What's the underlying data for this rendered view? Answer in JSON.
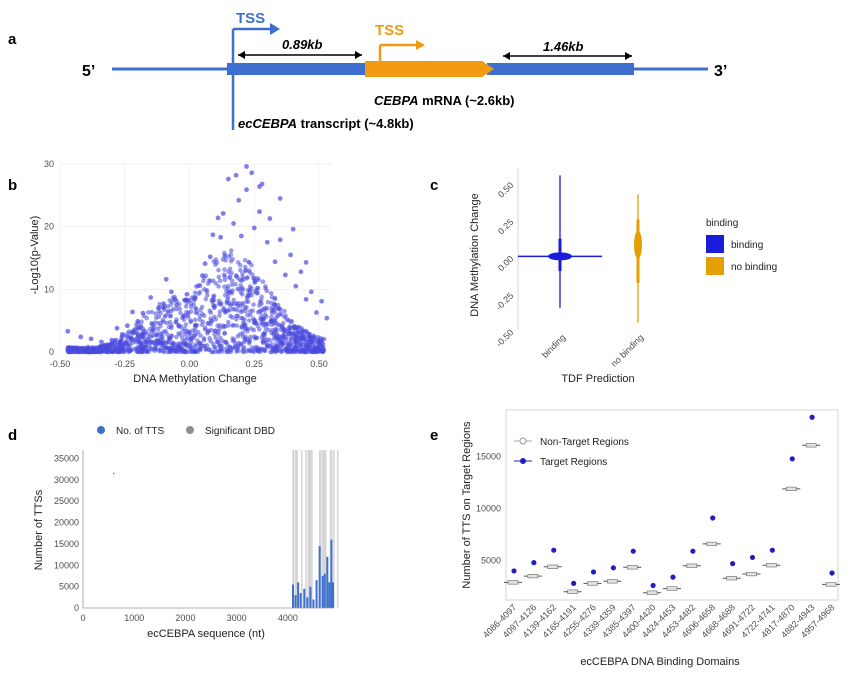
{
  "panel_labels": {
    "a": "a",
    "b": "b",
    "c": "c",
    "d": "d",
    "e": "e"
  },
  "colors": {
    "blue": "#3d6fce",
    "orange": "#f29a12",
    "dot_blue": "#4a4adf",
    "binding": "#1b1bdb",
    "no_binding": "#e69f00",
    "grey": "#8f8f8f"
  },
  "gene_diagram": {
    "five_prime": "5’",
    "three_prime": "3’",
    "tss_blue": "TSS",
    "tss_orange": "TSS",
    "dist_left": "0.89kb",
    "dist_right": "1.46kb",
    "mrna_gene": "CEBPA",
    "mrna_rest": " mRNA (~2.6kb)",
    "transcript_gene": "ecCEBPA",
    "transcript_rest": " transcript (~4.8kb)"
  },
  "chart_data": [
    {
      "panel": "b",
      "type": "scatter",
      "title": "",
      "xlabel": "DNA Methylation Change",
      "ylabel": "-Log10(p-Value)",
      "xlim": [
        -0.5,
        0.55
      ],
      "ylim": [
        0,
        30
      ],
      "xticks": [
        "-0.50",
        "-0.25",
        "0.00",
        "0.25",
        "0.50"
      ],
      "xtick_values": [
        -0.5,
        -0.25,
        0,
        0.25,
        0.5
      ],
      "yticks": [
        "0",
        "10",
        "20",
        "30"
      ],
      "ytick_values": [
        0,
        10,
        20,
        30
      ],
      "grid": true,
      "points": [
        [
          -0.47,
          3.3
        ],
        [
          -0.42,
          2.4
        ],
        [
          -0.38,
          2.1
        ],
        [
          -0.34,
          1.6
        ],
        [
          -0.3,
          1.9
        ],
        [
          -0.26,
          2.8
        ],
        [
          -0.24,
          4.2
        ],
        [
          -0.2,
          4.9
        ],
        [
          -0.18,
          6.2
        ],
        [
          -0.15,
          8.7
        ],
        [
          -0.12,
          7.0
        ],
        [
          -0.1,
          7.7
        ],
        [
          -0.07,
          9.6
        ],
        [
          -0.05,
          7.5
        ],
        [
          -0.02,
          5.8
        ],
        [
          -0.01,
          9.2
        ],
        [
          0.02,
          8.7
        ],
        [
          0.04,
          10.6
        ],
        [
          0.06,
          14.1
        ],
        [
          0.08,
          15.2
        ],
        [
          0.09,
          18.7
        ],
        [
          0.11,
          21.4
        ],
        [
          0.13,
          22.1
        ],
        [
          0.15,
          27.6
        ],
        [
          0.17,
          20.5
        ],
        [
          0.19,
          24.2
        ],
        [
          0.2,
          18.5
        ],
        [
          0.22,
          25.9
        ],
        [
          0.24,
          28.6
        ],
        [
          0.25,
          19.8
        ],
        [
          0.27,
          22.4
        ],
        [
          0.28,
          26.8
        ],
        [
          0.3,
          17.5
        ],
        [
          0.31,
          21.3
        ],
        [
          0.33,
          14.4
        ],
        [
          0.35,
          17.9
        ],
        [
          0.37,
          12.3
        ],
        [
          0.39,
          15.5
        ],
        [
          0.41,
          10.5
        ],
        [
          0.43,
          12.8
        ],
        [
          0.45,
          8.4
        ],
        [
          0.47,
          9.6
        ],
        [
          0.49,
          6.3
        ],
        [
          0.51,
          8.1
        ],
        [
          0.53,
          5.4
        ],
        [
          0.22,
          29.6
        ],
        [
          0.18,
          28.2
        ],
        [
          0.27,
          26.4
        ],
        [
          0.35,
          24.5
        ],
        [
          0.05,
          12.2
        ],
        [
          -0.09,
          11.6
        ],
        [
          -0.22,
          6.4
        ],
        [
          -0.28,
          3.8
        ],
        [
          0.4,
          19.6
        ],
        [
          0.45,
          14.3
        ],
        [
          0.12,
          18.3
        ]
      ]
    },
    {
      "panel": "c",
      "type": "violin",
      "title": "",
      "xlabel": "TDF Prediction",
      "ylabel": "DNA Methylation Change",
      "ylim": [
        -0.5,
        0.6
      ],
      "yticks": [
        "0.50",
        "0.25",
        "0.00",
        "-0.25",
        "-0.50"
      ],
      "ytick_values": [
        0.5,
        0.25,
        0,
        -0.25,
        -0.5
      ],
      "categories": [
        "binding",
        "no binding"
      ],
      "series": [
        {
          "name": "binding",
          "center": 0.0,
          "min": -0.35,
          "max": 0.55,
          "color": "#1b1bdb"
        },
        {
          "name": "no binding",
          "center": 0.08,
          "min": -0.45,
          "max": 0.42,
          "color": "#e69f00"
        }
      ],
      "legend": {
        "title": "binding",
        "entries": [
          "binding",
          "no binding"
        ],
        "position": "right"
      }
    },
    {
      "panel": "d",
      "type": "bar",
      "title": "",
      "xlabel": "ecCEBPA sequence (nt)",
      "ylabel": "Number of TTSs",
      "xlim": [
        0,
        4900
      ],
      "ylim": [
        0,
        37000
      ],
      "xticks": [
        "0",
        "1000",
        "2000",
        "3000",
        "4000"
      ],
      "xtick_values": [
        0,
        1000,
        2000,
        3000,
        4000
      ],
      "yticks": [
        "0",
        "5000",
        "10000",
        "15000",
        "20000",
        "25000",
        "30000",
        "35000"
      ],
      "ytick_values": [
        0,
        5000,
        10000,
        15000,
        20000,
        25000,
        30000,
        35000
      ],
      "legend": {
        "entries": [
          "No. of TTS",
          "Significant DBD"
        ],
        "position": "top"
      },
      "significant_dbd": [
        [
          4086,
          4097
        ],
        [
          4097,
          4126
        ],
        [
          4139,
          4162
        ],
        [
          4165,
          4191
        ],
        [
          4255,
          4276
        ],
        [
          4339,
          4359
        ],
        [
          4385,
          4397
        ],
        [
          4400,
          4420
        ],
        [
          4424,
          4453
        ],
        [
          4453,
          4482
        ],
        [
          4606,
          4658
        ],
        [
          4668,
          4688
        ],
        [
          4691,
          4722
        ],
        [
          4722,
          4741
        ],
        [
          4817,
          4870
        ],
        [
          4882,
          4943
        ],
        [
          4957,
          4968
        ]
      ],
      "tts_peaks": [
        [
          4100,
          5500
        ],
        [
          4150,
          3000
        ],
        [
          4200,
          6000
        ],
        [
          4250,
          3500
        ],
        [
          4320,
          4500
        ],
        [
          4380,
          2500
        ],
        [
          4440,
          5000
        ],
        [
          4500,
          2000
        ],
        [
          4560,
          6500
        ],
        [
          4620,
          14500
        ],
        [
          4680,
          7500
        ],
        [
          4720,
          8000
        ],
        [
          4770,
          12000
        ],
        [
          4810,
          6000
        ],
        [
          4850,
          16000
        ],
        [
          4880,
          6000
        ]
      ]
    },
    {
      "panel": "e",
      "type": "scatter",
      "title": "",
      "xlabel": "ecCEBPA DNA Binding Domains",
      "ylabel": "Number of TTS on Target Regions",
      "ylim": [
        1200,
        19500
      ],
      "yticks": [
        "5000",
        "10000",
        "15000"
      ],
      "ytick_values": [
        5000,
        10000,
        15000
      ],
      "categories": [
        "4086-4097",
        "4097-4126",
        "4139-4162",
        "4165-4191",
        "4255-4276",
        "4339-4359",
        "4385-4397",
        "4400-4420",
        "4424-4453",
        "4453-4482",
        "4606-4658",
        "4668-4688",
        "4691-4722",
        "4722-4741",
        "4817-4870",
        "4882-4943",
        "4957-4968"
      ],
      "series": [
        {
          "name": "Non-Target Regions",
          "values": [
            2900,
            3500,
            4400,
            2000,
            2800,
            3000,
            4350,
            1900,
            2300,
            4500,
            6600,
            3300,
            3700,
            4550,
            11900,
            16100,
            2700
          ]
        },
        {
          "name": "Target Regions",
          "values": [
            4000,
            4800,
            6000,
            2800,
            3900,
            4300,
            5900,
            2600,
            3400,
            5900,
            9100,
            4700,
            5300,
            6000,
            14800,
            18800,
            3800
          ]
        }
      ],
      "legend": {
        "entries": [
          "Non-Target Regions",
          "Target Regions"
        ],
        "position": "top-left"
      }
    }
  ]
}
